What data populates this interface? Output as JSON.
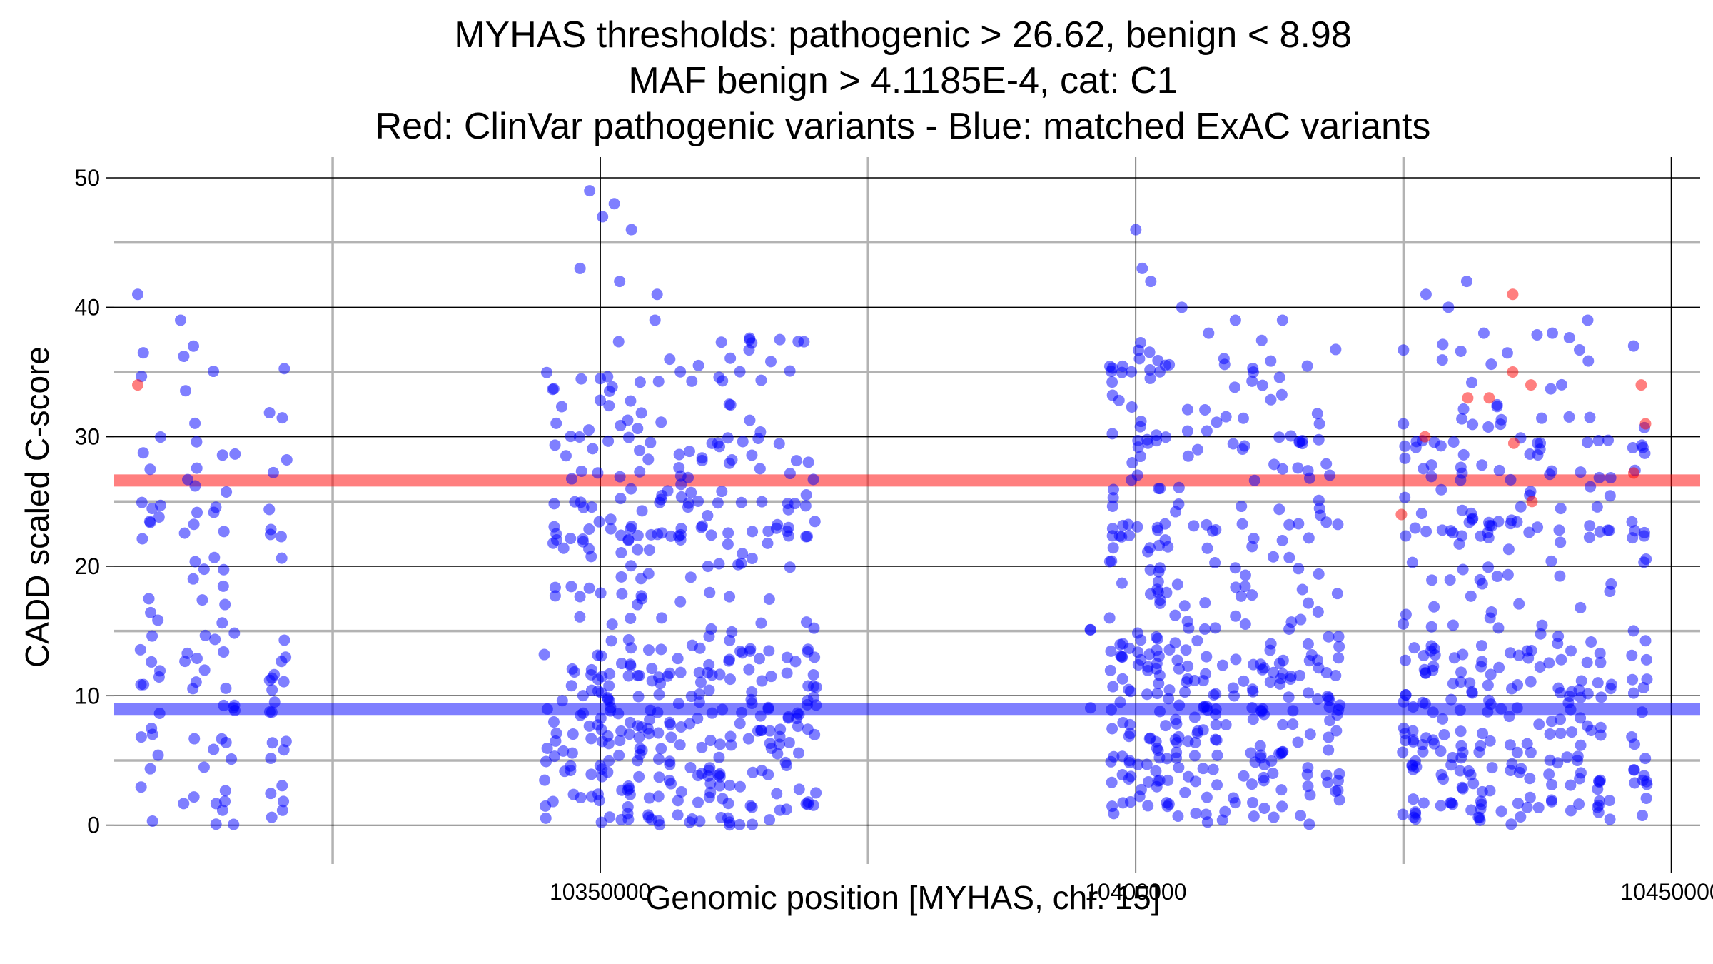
{
  "chart_data": {
    "type": "scatter",
    "title_lines": [
      "MYHAS thresholds: pathogenic > 26.62, benign < 8.98",
      "MAF benign > 4.1185E-4, cat: C1",
      "Red: ClinVar pathogenic variants - Blue: matched ExAC variants"
    ],
    "xlabel": "Genomic position [MYHAS, chr. 15]",
    "ylabel": "CADD scaled C-score",
    "xlim": [
      10304600,
      10452700
    ],
    "ylim": [
      -3,
      51.6
    ],
    "x_ticks": [
      10350000,
      10400000,
      10450000
    ],
    "x_tick_labels": [
      "10350000",
      "10400000",
      "10450000"
    ],
    "y_ticks": [
      0,
      10,
      20,
      30,
      40,
      50
    ],
    "y_tick_labels": [
      "0",
      "10",
      "20",
      "30",
      "40",
      "50"
    ],
    "x_minor_grid": [
      10325000,
      10375000,
      10425000
    ],
    "y_minor_grid": [
      5,
      15,
      25,
      35,
      45
    ],
    "grid": true,
    "legend": "none",
    "colors": {
      "pathogenic": "#ff0000",
      "benign": "#0000ff",
      "major_grid": "#000000",
      "minor_grid": "#b3b3b3"
    },
    "thresholds": [
      {
        "name": "pathogenic",
        "value": 26.62,
        "color": "#ff0000"
      },
      {
        "name": "benign",
        "value": 8.98,
        "color": "#0000ff"
      }
    ],
    "series": [
      {
        "key": "exac",
        "color": "#0000ff",
        "clusters": [
          {
            "x_range": [
              10306800,
              10309200
            ],
            "density": 30
          },
          {
            "x_range": [
              10310800,
              10316200
            ],
            "density": 55
          },
          {
            "x_range": [
              10318800,
              10321000
            ],
            "density": 30
          },
          {
            "x_range": [
              10344500,
              10349500
            ],
            "density": 70
          },
          {
            "x_range": [
              10349500,
              10356000
            ],
            "density": 140
          },
          {
            "x_range": [
              10356000,
              10364500
            ],
            "density": 150
          },
          {
            "x_range": [
              10364500,
              10370500
            ],
            "density": 90
          },
          {
            "x_range": [
              10395600,
              10396200
            ],
            "density": 3
          },
          {
            "x_range": [
              10397300,
              10402500
            ],
            "density": 130
          },
          {
            "x_range": [
              10402500,
              10410500
            ],
            "density": 120
          },
          {
            "x_range": [
              10410500,
              10419300
            ],
            "density": 140
          },
          {
            "x_range": [
              10424700,
              10433500
            ],
            "density": 160
          },
          {
            "x_range": [
              10433500,
              10444700
            ],
            "density": 150
          },
          {
            "x_range": [
              10446000,
              10448000
            ],
            "density": 35
          }
        ],
        "highlights": [
          {
            "x": 10306800,
            "y": 41
          },
          {
            "x": 10310800,
            "y": 39
          },
          {
            "x": 10312000,
            "y": 37
          },
          {
            "x": 10349000,
            "y": 49
          },
          {
            "x": 10350200,
            "y": 47
          },
          {
            "x": 10351300,
            "y": 48
          },
          {
            "x": 10352900,
            "y": 46
          },
          {
            "x": 10348100,
            "y": 43
          },
          {
            "x": 10351800,
            "y": 42
          },
          {
            "x": 10355300,
            "y": 41
          },
          {
            "x": 10355100,
            "y": 39
          },
          {
            "x": 10400000,
            "y": 46
          },
          {
            "x": 10400600,
            "y": 43
          },
          {
            "x": 10401400,
            "y": 42
          },
          {
            "x": 10404300,
            "y": 40
          },
          {
            "x": 10406800,
            "y": 38
          },
          {
            "x": 10409300,
            "y": 39
          },
          {
            "x": 10413700,
            "y": 39
          },
          {
            "x": 10427100,
            "y": 41
          },
          {
            "x": 10430900,
            "y": 42
          },
          {
            "x": 10429200,
            "y": 40
          },
          {
            "x": 10438900,
            "y": 38
          },
          {
            "x": 10442200,
            "y": 39
          },
          {
            "x": 10432500,
            "y": 38
          }
        ]
      },
      {
        "key": "clinvar",
        "color": "#ff0000",
        "points": [
          {
            "x": 10306800,
            "y": 34
          },
          {
            "x": 10424800,
            "y": 24
          },
          {
            "x": 10427000,
            "y": 30
          },
          {
            "x": 10431000,
            "y": 33
          },
          {
            "x": 10433000,
            "y": 33
          },
          {
            "x": 10435200,
            "y": 41
          },
          {
            "x": 10435200,
            "y": 35
          },
          {
            "x": 10435300,
            "y": 29.5
          },
          {
            "x": 10436900,
            "y": 34
          },
          {
            "x": 10437000,
            "y": 25
          },
          {
            "x": 10446500,
            "y": 27.2
          },
          {
            "x": 10447200,
            "y": 34
          },
          {
            "x": 10447600,
            "y": 31
          }
        ]
      }
    ]
  }
}
